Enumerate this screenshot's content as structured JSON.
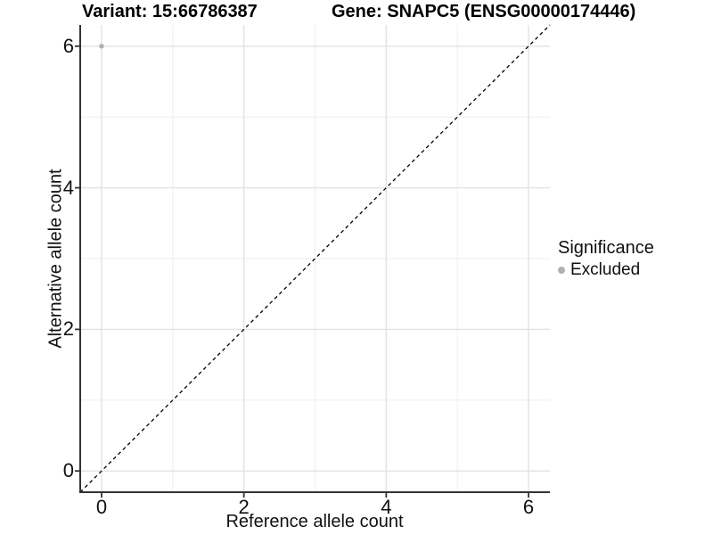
{
  "chart_data": {
    "type": "scatter",
    "title_left": "Variant: 15:66786387",
    "title_right": "Gene: SNAPC5 (ENSG00000174446)",
    "xlabel": "Reference allele count",
    "ylabel": "Alternative allele count",
    "xlim": [
      -0.3,
      6.3
    ],
    "ylim": [
      -0.3,
      6.3
    ],
    "xticks": [
      0,
      2,
      4,
      6
    ],
    "yticks": [
      0,
      2,
      4,
      6
    ],
    "grid_major": [
      0,
      2,
      4,
      6
    ],
    "grid_minor": [
      1,
      3,
      5
    ],
    "identity_line": {
      "slope": 1,
      "intercept": 0,
      "style": "dashed",
      "color": "#000000"
    },
    "series": [
      {
        "name": "Excluded",
        "color": "#b0b0b0",
        "points": [
          {
            "x": 0,
            "y": 6
          }
        ]
      }
    ],
    "legend": {
      "title": "Significance",
      "position": "right",
      "items": [
        {
          "label": "Excluded",
          "color": "#b0b0b0",
          "marker": "circle"
        }
      ]
    },
    "colors": {
      "background": "#ffffff",
      "grid_major": "#e2e2e2",
      "grid_minor": "#eeeeee",
      "axis_line": "#333333",
      "tick": "#333333",
      "point": "#b0b0b0"
    }
  }
}
